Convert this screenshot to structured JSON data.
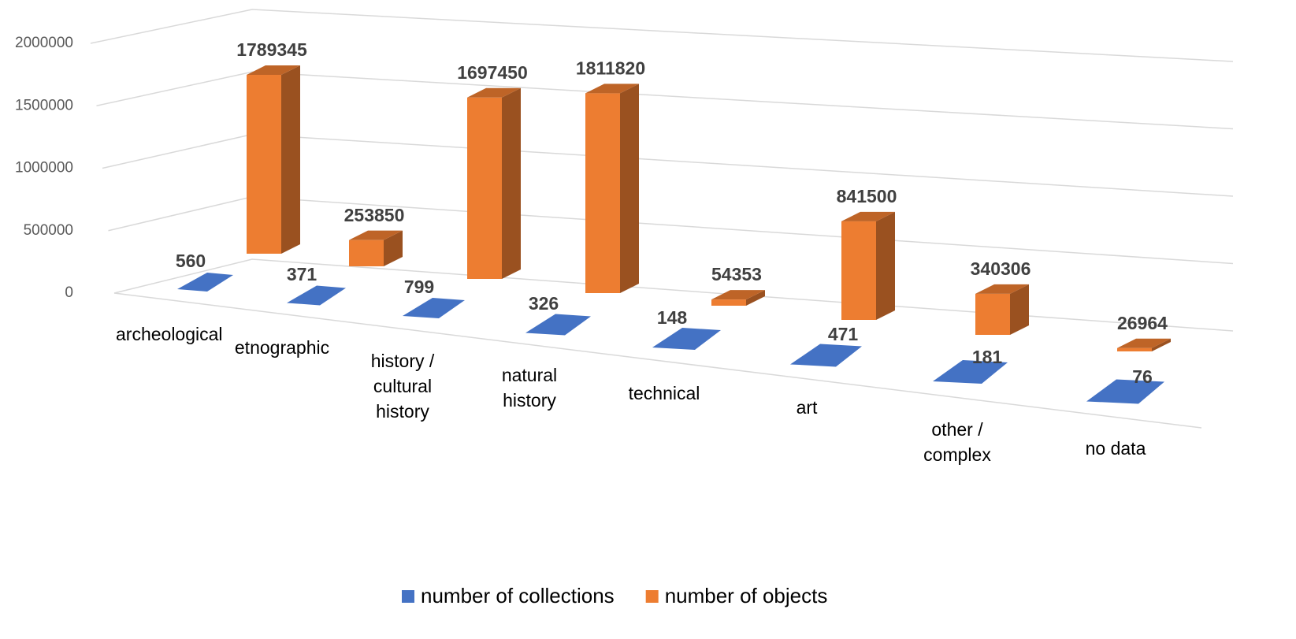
{
  "chart_data": {
    "type": "bar3d",
    "categories": [
      "archeological",
      "etnographic",
      "history / cultural history",
      "natural history",
      "technical",
      "art",
      "other / complex",
      "no data"
    ],
    "series": [
      {
        "name": "number of collections",
        "color": "#4472c4",
        "values": [
          560,
          371,
          799,
          326,
          148,
          471,
          181,
          76
        ]
      },
      {
        "name": "number of objects",
        "color": "#ed7d31",
        "values": [
          1789345,
          253850,
          1697450,
          1811820,
          54353,
          841500,
          340306,
          26964
        ]
      }
    ],
    "ylim": [
      0,
      2000000
    ],
    "yticks": [
      0,
      500000,
      1000000,
      1500000,
      2000000
    ],
    "grid": true,
    "legend": "bottom"
  }
}
